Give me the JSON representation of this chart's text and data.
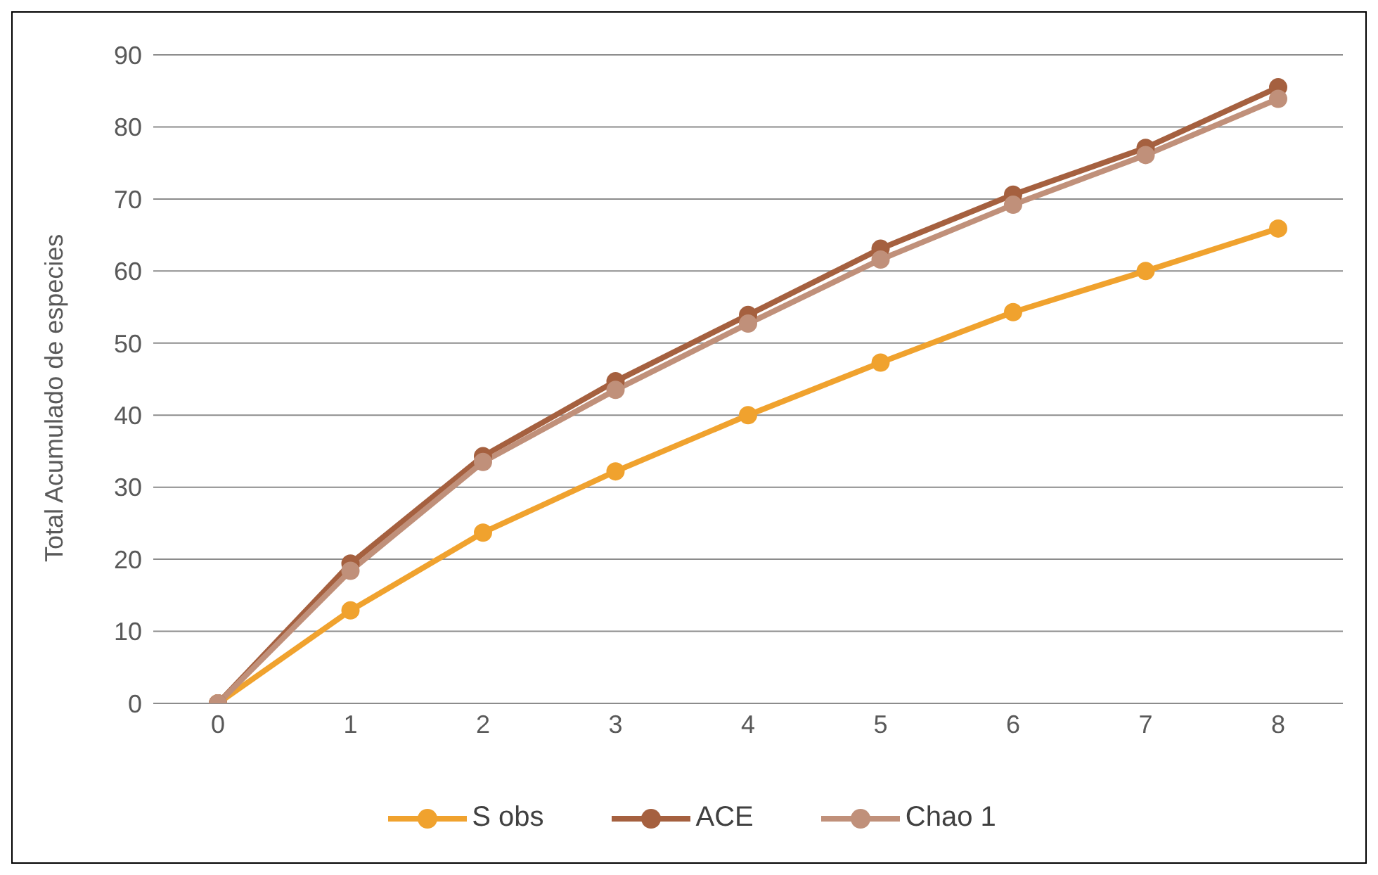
{
  "chart_data": {
    "type": "line",
    "ylabel": "Total Acumulado de especies",
    "categories": [
      "0",
      "1",
      "2",
      "3",
      "4",
      "5",
      "6",
      "7",
      "8"
    ],
    "series": [
      {
        "name": "S obs",
        "color": "#f0a22e",
        "values": [
          0,
          12.9,
          23.7,
          32.2,
          40,
          47.3,
          54.3,
          60,
          65.9
        ]
      },
      {
        "name": "ACE",
        "color": "#a5603f",
        "values": [
          0,
          19.4,
          34.3,
          44.7,
          53.9,
          63.1,
          70.6,
          77.1,
          85.5
        ]
      },
      {
        "name": "Chao 1",
        "color": "#c0907a",
        "values": [
          0,
          18.4,
          33.5,
          43.5,
          52.7,
          61.6,
          69.2,
          76.1,
          83.9
        ]
      }
    ],
    "ylim": [
      0,
      90
    ],
    "yticks": [
      0,
      10,
      20,
      30,
      40,
      50,
      60,
      70,
      80,
      90
    ],
    "grid": "y",
    "legend": "bottom",
    "marker": "circle",
    "line_style": "solid"
  }
}
